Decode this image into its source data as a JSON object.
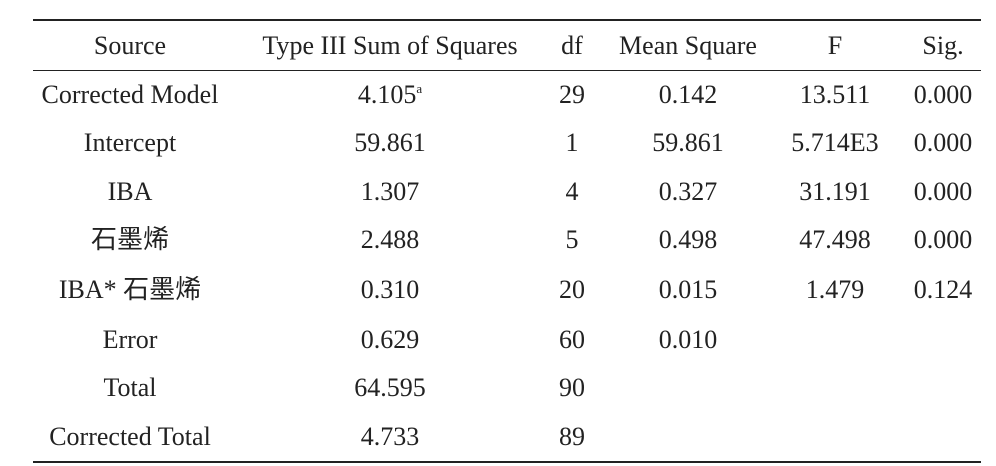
{
  "table": {
    "header": [
      "Source",
      "Type III Sum of Squares",
      "df",
      "Mean Square",
      "F",
      "Sig."
    ],
    "rows": [
      [
        "Corrected Model",
        {
          "text": "4.105",
          "sup": "a"
        },
        "29",
        "0.142",
        "13.511",
        "0.000"
      ],
      [
        "Intercept",
        "59.861",
        "1",
        "59.861",
        "5.714E3",
        "0.000"
      ],
      [
        "IBA",
        "1.307",
        "4",
        "0.327",
        "31.191",
        "0.000"
      ],
      [
        "石墨烯",
        "2.488",
        "5",
        "0.498",
        "47.498",
        "0.000"
      ],
      [
        "IBA* 石墨烯",
        "0.310",
        "20",
        "0.015",
        "1.479",
        "0.124"
      ],
      [
        "Error",
        "0.629",
        "60",
        "0.010"
      ],
      [
        "Total",
        "64.595",
        "90"
      ],
      [
        "Corrected Total",
        "4.733",
        "89"
      ]
    ]
  }
}
